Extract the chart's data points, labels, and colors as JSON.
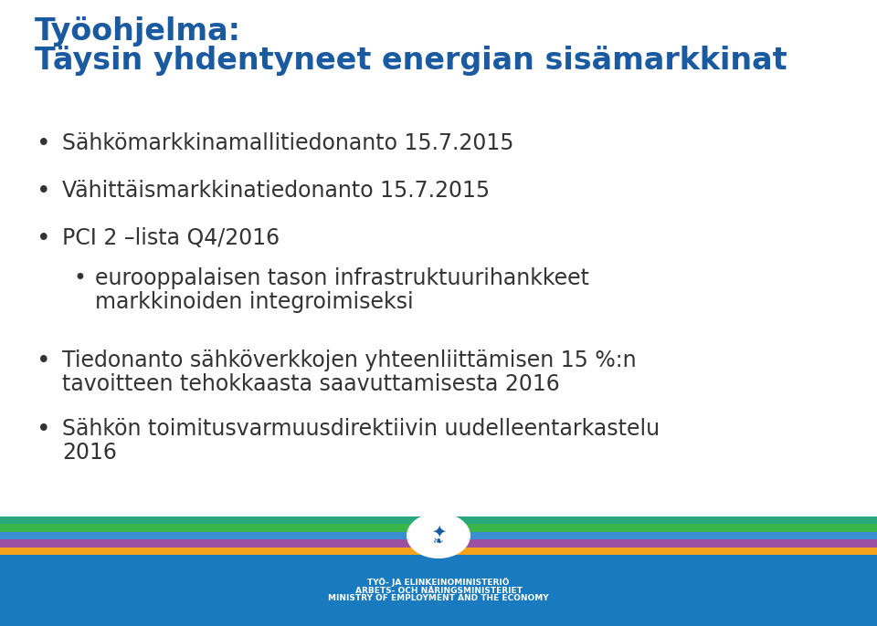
{
  "title_line1": "Työohjelma:",
  "title_line2": "Täysin yhdentyneet energian sisämarkkinat",
  "title_color": "#1a5aa0",
  "title_fontsize": 24,
  "bg_color": "#ffffff",
  "bullet_color": "#333333",
  "bullet_fontsize": 17,
  "sub_bullet_fontsize": 17,
  "text_color": "#333333",
  "bullets": [
    "Sähkömarkkinamallitiedonanto 15.7.2015",
    "Vähittäismarkkinatiedonanto 15.7.2015",
    "PCI 2 –lista Q4/2016"
  ],
  "sub_bullet": "eurooppalaisen tason infrastruktuurihankkeet markkinoiden integroimiseksi",
  "extra_bullets": [
    "Tiedonanto sähköverkkojen yhteenliittämisen 15 %:n tavoitteen tehokkaasta saavuttamisesta 2016",
    "Sähkön toimitusvarmuusdirektiivin uudelleentarkastelu 2016"
  ],
  "footer_bg": "#1a7abf",
  "footer_text_lines": [
    "TYÖ- JA ELINKEINOMINISTERIÖ",
    "ARBETS- OCH NÄRINGSMINISTERIET",
    "MINISTRY OF EMPLOYMENT AND THE ECONOMY"
  ],
  "footer_text_color": "#ffffff",
  "footer_text_fontsize": 6.5,
  "stripe_colors": [
    "#f5a31a",
    "#9b4fa0",
    "#3a8fd1",
    "#3ab54a",
    "#29a87c"
  ],
  "stripe_colors_right": [
    "#e83030",
    "#c0392b",
    "#1eb8d0",
    "#2e8b57"
  ]
}
